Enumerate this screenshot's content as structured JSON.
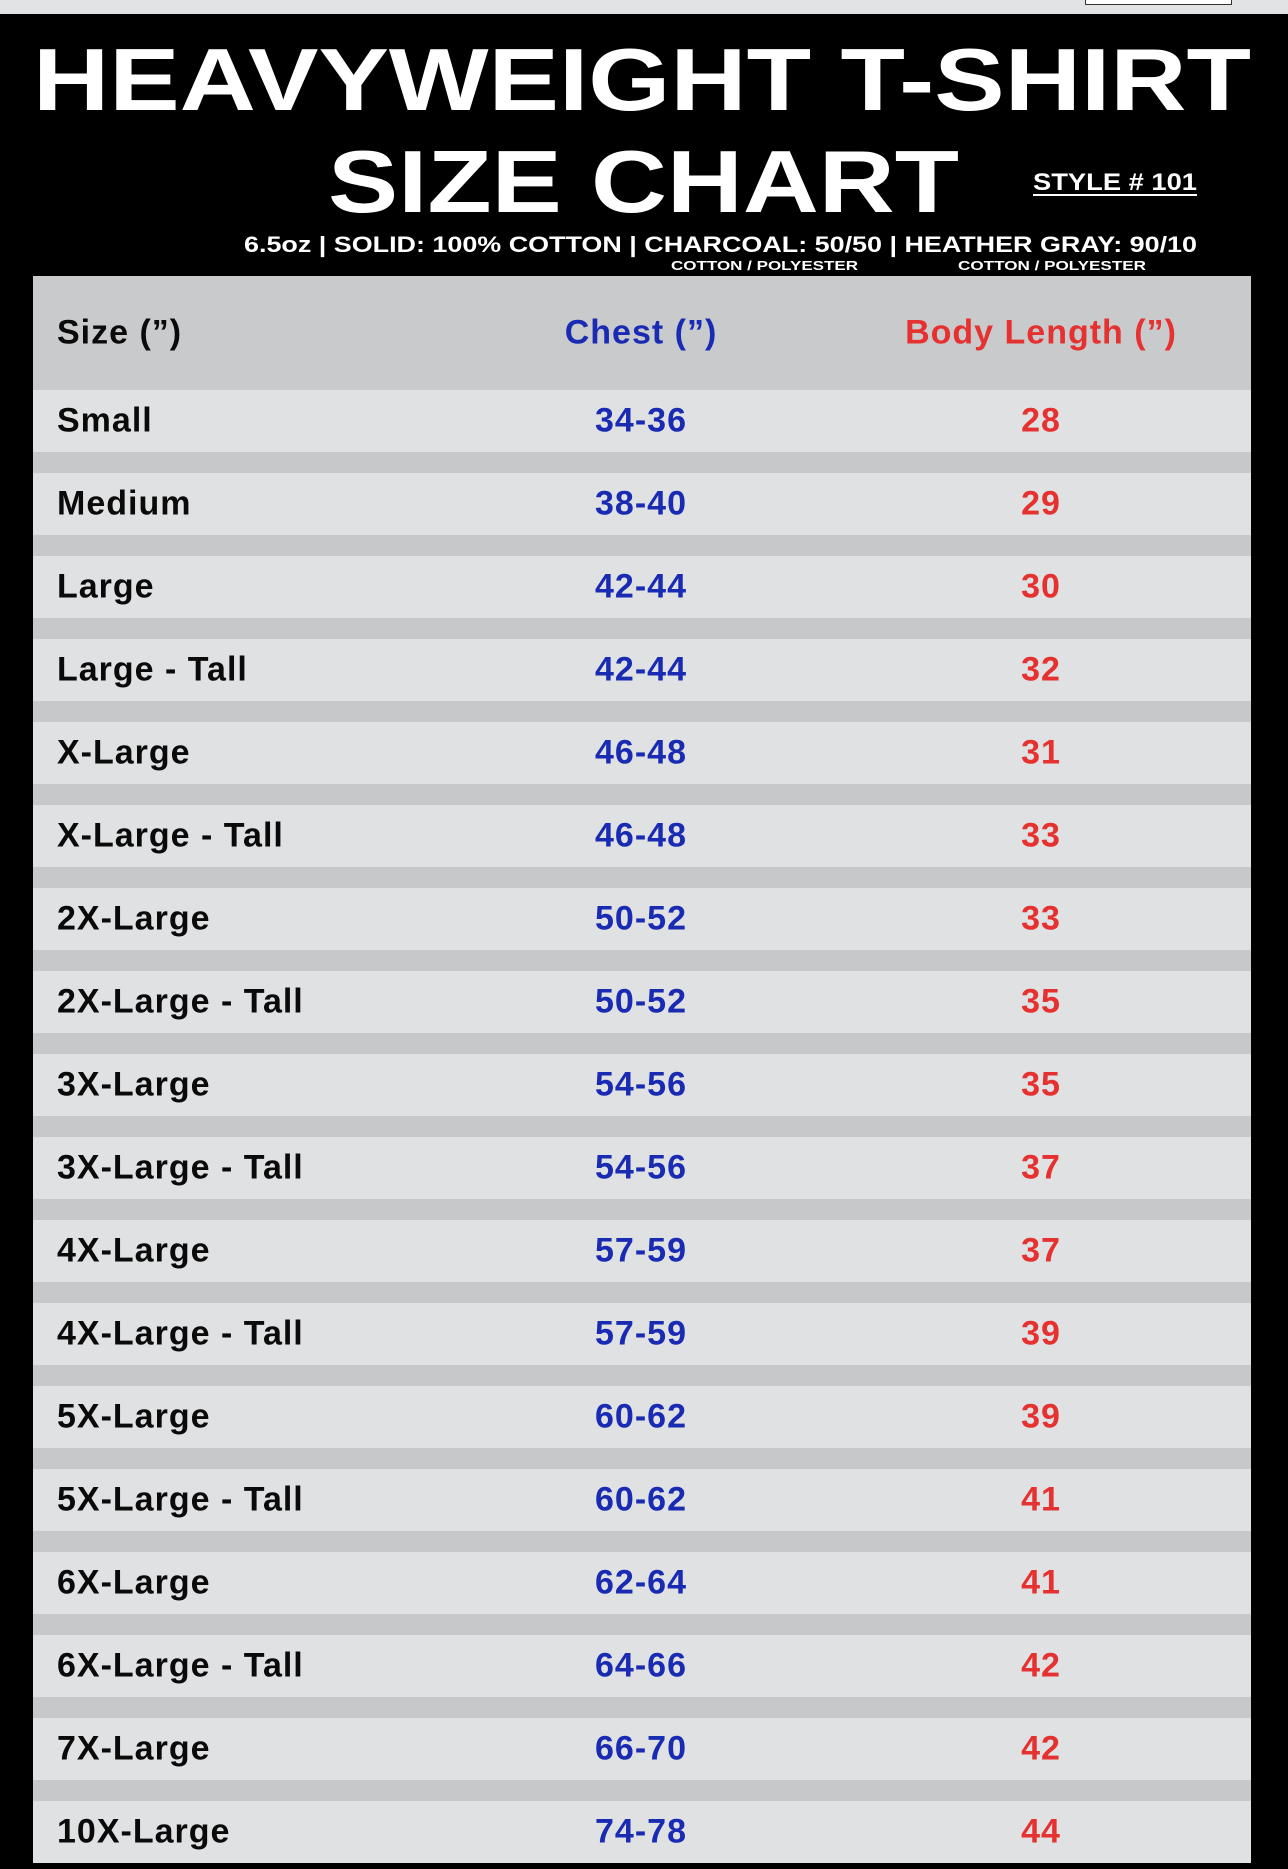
{
  "header": {
    "title_line1": "HEAVYWEIGHT T-SHIRT",
    "title_line2": "SIZE CHART",
    "style": "STYLE # 101",
    "specs": "6.5oz | SOLID: 100% COTTON | CHARCOAL: 50/50 | HEATHER GRAY: 90/10",
    "charcoal_note": "COTTON / POLYESTER",
    "heather_note": "COTTON / POLYESTER"
  },
  "colors": {
    "chest": "#1a2bb3",
    "body_length": "#e5312f",
    "size": "#0a0a0a"
  },
  "table": {
    "columns": [
      "Size (”)",
      "Chest (”)",
      "Body Length (”)"
    ],
    "rows": [
      [
        "Small",
        "34-36",
        "28"
      ],
      [
        "Medium",
        "38-40",
        "29"
      ],
      [
        "Large",
        "42-44",
        "30"
      ],
      [
        "Large - Tall",
        "42-44",
        "32"
      ],
      [
        "X-Large",
        "46-48",
        "31"
      ],
      [
        "X-Large - Tall",
        "46-48",
        "33"
      ],
      [
        "2X-Large",
        "50-52",
        "33"
      ],
      [
        "2X-Large - Tall",
        "50-52",
        "35"
      ],
      [
        "3X-Large",
        "54-56",
        "35"
      ],
      [
        "3X-Large - Tall",
        "54-56",
        "37"
      ],
      [
        "4X-Large",
        "57-59",
        "37"
      ],
      [
        "4X-Large - Tall",
        "57-59",
        "39"
      ],
      [
        "5X-Large",
        "60-62",
        "39"
      ],
      [
        "5X-Large - Tall",
        "60-62",
        "41"
      ],
      [
        "6X-Large",
        "62-64",
        "41"
      ],
      [
        "6X-Large - Tall",
        "64-66",
        "42"
      ],
      [
        "7X-Large",
        "66-70",
        "42"
      ],
      [
        "10X-Large",
        "74-78",
        "44"
      ]
    ]
  }
}
